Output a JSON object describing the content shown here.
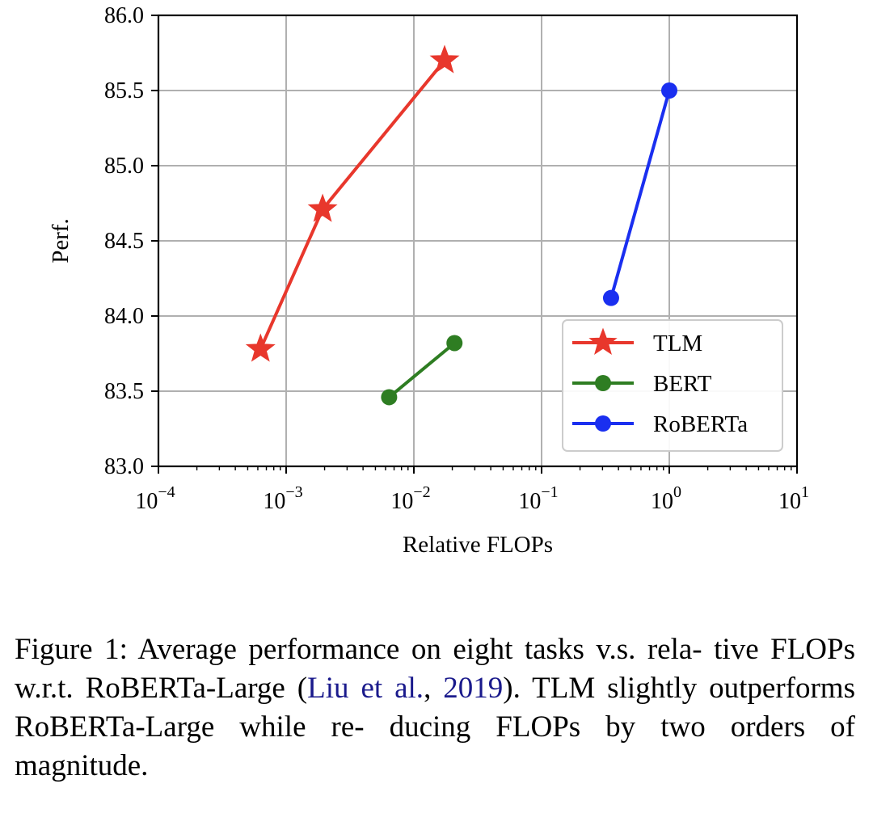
{
  "chart_data": {
    "type": "line",
    "title": "",
    "xlabel": "Relative FLOPs",
    "ylabel": "Perf.",
    "xscale": "log",
    "xlim": [
      0.0001,
      10
    ],
    "ylim": [
      83.0,
      86.0
    ],
    "grid": true,
    "legend_position": "lower-right",
    "x_ticks": [
      {
        "base": "10",
        "exp": "−4",
        "value": 0.0001
      },
      {
        "base": "10",
        "exp": "−3",
        "value": 0.001
      },
      {
        "base": "10",
        "exp": "−2",
        "value": 0.01
      },
      {
        "base": "10",
        "exp": "−1",
        "value": 0.1
      },
      {
        "base": "10",
        "exp": "0",
        "value": 1
      },
      {
        "base": "10",
        "exp": "1",
        "value": 10
      }
    ],
    "y_ticks": [
      "83.0",
      "83.5",
      "84.0",
      "84.5",
      "85.0",
      "85.5",
      "86.0"
    ],
    "series": [
      {
        "name": "TLM",
        "color": "#e8372c",
        "marker": "star",
        "points": [
          {
            "x": 0.00063,
            "y": 83.78
          },
          {
            "x": 0.00193,
            "y": 84.71
          },
          {
            "x": 0.0174,
            "y": 85.7
          }
        ]
      },
      {
        "name": "BERT",
        "color": "#2e7d22",
        "marker": "circle",
        "points": [
          {
            "x": 0.0064,
            "y": 83.46
          },
          {
            "x": 0.0208,
            "y": 83.82
          }
        ]
      },
      {
        "name": "RoBERTa",
        "color": "#1a2ff0",
        "marker": "circle",
        "points": [
          {
            "x": 0.35,
            "y": 84.12
          },
          {
            "x": 1.0,
            "y": 85.5
          }
        ]
      }
    ]
  },
  "caption": {
    "part1": "Figure 1: Average performance on eight tasks v.s. rela- tive FLOPs w.r.t.  RoBERTa-Large (",
    "cite_author": "Liu et al.",
    "cite_sep": ", ",
    "cite_year": "2019",
    "part2": "). TLM slightly outperforms RoBERTa-Large while re- ducing FLOPs by two orders of magnitude."
  }
}
